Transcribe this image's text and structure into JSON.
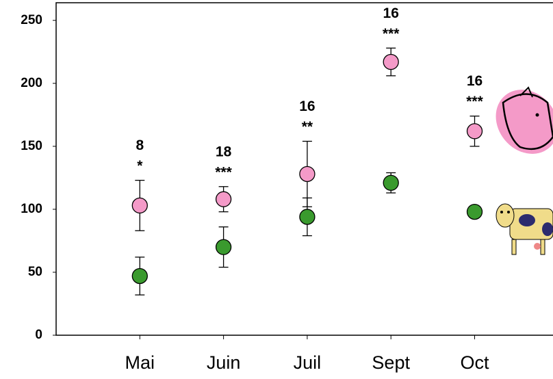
{
  "chart_data": {
    "type": "errorbar",
    "categories": [
      "Mai",
      "Juin",
      "Juil",
      "Sept",
      "Oct"
    ],
    "series": [
      {
        "color": "#f49ac8",
        "values": [
          103,
          108,
          128,
          217,
          162
        ],
        "errors": [
          20,
          10,
          26,
          11,
          12
        ]
      },
      {
        "color": "#3a9a2e",
        "values": [
          47,
          70,
          94,
          121,
          98
        ],
        "errors": [
          15,
          16,
          15,
          8,
          3
        ]
      }
    ],
    "sample_sizes": [
      "8",
      "18",
      "16",
      "16",
      "16"
    ],
    "significance": [
      "*",
      "***",
      "**",
      "***",
      "***"
    ],
    "ylim": [
      0,
      264
    ],
    "yticks": [
      0,
      50,
      100,
      150,
      200,
      250
    ]
  }
}
